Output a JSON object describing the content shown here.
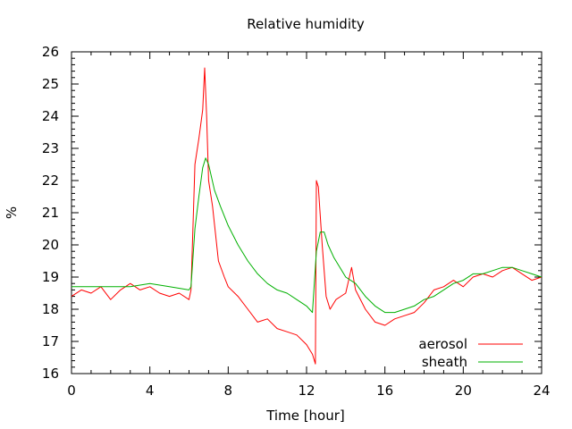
{
  "chart_data": {
    "type": "line",
    "title": "Relative humidity",
    "xlabel": "Time [hour]",
    "ylabel": "%",
    "xlim": [
      0,
      24
    ],
    "ylim": [
      16,
      26
    ],
    "xticks": [
      "0",
      "4",
      "8",
      "12",
      "16",
      "20",
      "24"
    ],
    "yticks": [
      "16",
      "17",
      "18",
      "19",
      "20",
      "21",
      "22",
      "23",
      "24",
      "25",
      "26"
    ],
    "minor_x_step": 1,
    "minor_y_step": 0.2,
    "legend_position": "bottom-right",
    "grid": false,
    "series": [
      {
        "name": "aerosol",
        "color": "#ff0000",
        "x": [
          0,
          0.5,
          1,
          1.5,
          2,
          2.5,
          3,
          3.5,
          4,
          4.5,
          5,
          5.5,
          6,
          6.1,
          6.3,
          6.5,
          6.7,
          6.8,
          6.9,
          7,
          7.2,
          7.5,
          7.8,
          8,
          8.5,
          9,
          9.5,
          10,
          10.5,
          11,
          11.5,
          12,
          12.3,
          12.45,
          12.5,
          12.6,
          12.8,
          13,
          13.2,
          13.5,
          14,
          14.3,
          14.5,
          15,
          15.5,
          16,
          16.5,
          17,
          17.5,
          18,
          18.5,
          19,
          19.5,
          20,
          20.5,
          21,
          21.5,
          22,
          22.5,
          23,
          23.5,
          24
        ],
        "values": [
          18.4,
          18.6,
          18.5,
          18.7,
          18.3,
          18.6,
          18.8,
          18.6,
          18.7,
          18.5,
          18.4,
          18.5,
          18.3,
          18.6,
          22.5,
          23.3,
          24.2,
          25.5,
          24.0,
          22.0,
          21.2,
          19.5,
          19.0,
          18.7,
          18.4,
          18.0,
          17.6,
          17.7,
          17.4,
          17.3,
          17.2,
          16.9,
          16.6,
          16.3,
          22.0,
          21.8,
          20.0,
          18.4,
          18.0,
          18.3,
          18.5,
          19.3,
          18.6,
          18.0,
          17.6,
          17.5,
          17.7,
          17.8,
          17.9,
          18.2,
          18.6,
          18.7,
          18.9,
          18.7,
          19.0,
          19.1,
          19.0,
          19.2,
          19.3,
          19.1,
          18.9,
          19.0
        ]
      },
      {
        "name": "sheath",
        "color": "#00b000",
        "x": [
          0,
          1,
          2,
          3,
          4,
          5,
          6,
          6.1,
          6.3,
          6.5,
          6.7,
          6.85,
          7,
          7.3,
          7.6,
          8,
          8.5,
          9,
          9.5,
          10,
          10.5,
          11,
          11.5,
          12,
          12.3,
          12.5,
          12.7,
          12.9,
          13.1,
          13.4,
          13.7,
          14,
          14.5,
          15,
          15.5,
          16,
          16.5,
          17,
          17.5,
          18,
          18.5,
          19,
          19.5,
          20,
          20.5,
          21,
          21.5,
          22,
          22.5,
          23,
          23.5,
          24
        ],
        "values": [
          18.7,
          18.7,
          18.7,
          18.7,
          18.8,
          18.7,
          18.6,
          18.7,
          20.5,
          21.5,
          22.4,
          22.7,
          22.5,
          21.7,
          21.2,
          20.6,
          20.0,
          19.5,
          19.1,
          18.8,
          18.6,
          18.5,
          18.3,
          18.1,
          17.9,
          19.8,
          20.4,
          20.4,
          20.0,
          19.6,
          19.3,
          19.0,
          18.8,
          18.4,
          18.1,
          17.9,
          17.9,
          18.0,
          18.1,
          18.3,
          18.4,
          18.6,
          18.8,
          18.9,
          19.1,
          19.1,
          19.2,
          19.3,
          19.3,
          19.2,
          19.1,
          19.0
        ]
      }
    ]
  }
}
